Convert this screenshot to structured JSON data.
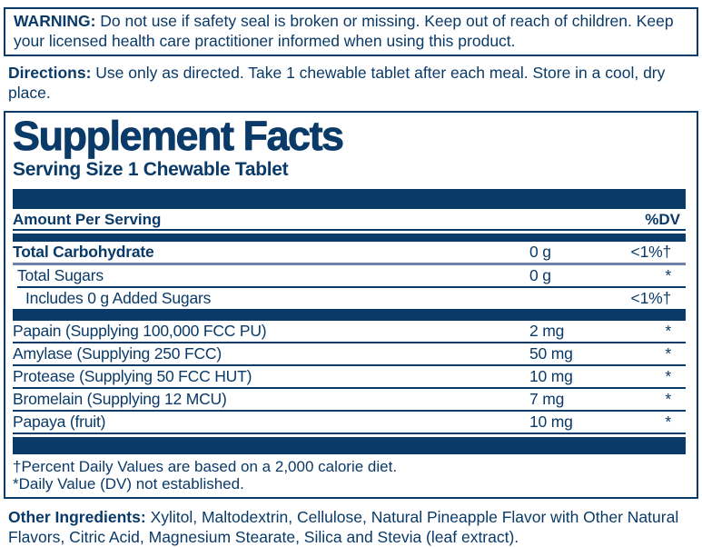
{
  "colors": {
    "navy": "#0a3a68",
    "steel_rule": "#6b81a6",
    "background": "#ffffff"
  },
  "warning": {
    "label": "WARNING:",
    "text": "Do not use if safety seal is broken or missing. Keep out of reach of children. Keep your licensed health care practitioner informed when using this product."
  },
  "directions": {
    "label": "Directions:",
    "text": "Use only as directed. Take 1 chewable tablet after each meal. Store in a cool, dry place."
  },
  "supplement_facts": {
    "title": "Supplement Facts",
    "serving_size": "Serving Size 1 Chewable Tablet",
    "header": {
      "amount_per_serving": "Amount Per Serving",
      "dv": "%DV"
    },
    "nutrient_rows": [
      {
        "name": "Total Carbohydrate",
        "amount": "0 g",
        "dv": "<1%†",
        "bold": true
      },
      {
        "name": "Total Sugars",
        "amount": "0 g",
        "dv": "*",
        "bold": false
      },
      {
        "name": "Includes 0 g Added Sugars",
        "amount": "",
        "dv": "<1%†",
        "bold": false
      }
    ],
    "ingredient_rows": [
      {
        "name": "Papain (Supplying 100,000 FCC PU)",
        "amount": "2 mg",
        "dv": "*",
        "bold": false
      },
      {
        "name": "Amylase (Supplying 250 FCC)",
        "amount": "50 mg",
        "dv": "*",
        "bold": false
      },
      {
        "name": "Protease (Supplying 50 FCC HUT)",
        "amount": "10 mg",
        "dv": "*",
        "bold": false
      },
      {
        "name": "Bromelain (Supplying 12 MCU)",
        "amount": "7 mg",
        "dv": "*",
        "bold": false
      },
      {
        "name": "Papaya (fruit)",
        "amount": "10 mg",
        "dv": "*",
        "bold": false
      }
    ],
    "footnotes": [
      "†Percent Daily Values are based on a 2,000 calorie diet.",
      "*Daily Value (DV) not established."
    ]
  },
  "other_ingredients": {
    "label": "Other Ingredients:",
    "text": "Xylitol, Maltodextrin, Cellulose, Natural Pineapple Flavor with Other Natural Flavors, Citric Acid, Magnesium Stearate, Silica and Stevia (leaf extract)."
  }
}
